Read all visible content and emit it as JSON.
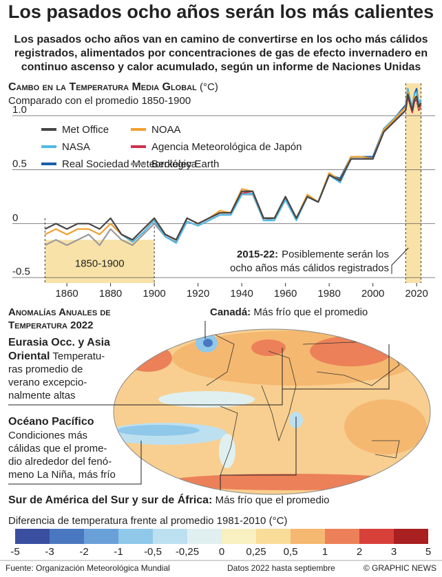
{
  "header": {
    "title": "Los pasados ocho años serán los más calientes",
    "subtitle": [
      "Los pasados ocho años van en camino de convertirse en los ocho más cálidos",
      "registrados, alimentados por concentraciones de gas de efecto invernadero en",
      "continuo ascenso y calor acumulado, según un informe de Naciones Unidas"
    ]
  },
  "chart_data": {
    "type": "line",
    "title": "Cambo en la Temperatura Media Global",
    "unit": "(°C)",
    "subtitle": "Comparado con el promedio 1850-1900",
    "x": [
      1850,
      1855,
      1860,
      1865,
      1870,
      1875,
      1880,
      1885,
      1890,
      1895,
      1900,
      1905,
      1910,
      1915,
      1920,
      1925,
      1930,
      1935,
      1940,
      1945,
      1950,
      1955,
      1960,
      1965,
      1970,
      1975,
      1980,
      1985,
      1990,
      1995,
      2000,
      2005,
      2010,
      2015,
      2016,
      2017,
      2018,
      2019,
      2020,
      2021,
      2022
    ],
    "series": [
      {
        "name": "Met Office",
        "color": "#454545",
        "values": [
          -0.05,
          0.0,
          -0.05,
          0.0,
          0.0,
          -0.05,
          0.05,
          -0.1,
          -0.15,
          -0.05,
          0.05,
          -0.1,
          -0.15,
          0.05,
          0.0,
          0.05,
          0.1,
          0.1,
          0.3,
          0.3,
          0.05,
          0.05,
          0.25,
          0.05,
          0.25,
          0.2,
          0.45,
          0.4,
          0.6,
          0.6,
          0.6,
          0.85,
          0.95,
          1.05,
          1.2,
          1.12,
          1.05,
          1.15,
          1.18,
          1.08,
          1.12
        ]
      },
      {
        "name": "NOAA",
        "color": "#f0a030",
        "values": [
          -0.1,
          -0.05,
          -0.1,
          -0.05,
          -0.05,
          -0.1,
          0.0,
          -0.1,
          -0.15,
          -0.05,
          0.05,
          -0.1,
          -0.15,
          0.05,
          0.0,
          0.05,
          0.12,
          0.1,
          0.32,
          0.3,
          0.05,
          0.05,
          0.25,
          0.05,
          0.27,
          0.2,
          0.47,
          0.4,
          0.62,
          0.62,
          0.6,
          0.87,
          0.97,
          1.08,
          1.22,
          1.12,
          1.05,
          1.17,
          1.18,
          1.07,
          1.12
        ]
      },
      {
        "name": "NASA",
        "color": "#50b8e8",
        "values": [
          null,
          null,
          null,
          null,
          null,
          null,
          0.0,
          -0.1,
          -0.17,
          -0.08,
          0.03,
          -0.12,
          -0.18,
          0.02,
          -0.02,
          0.03,
          0.08,
          0.08,
          0.27,
          0.28,
          0.03,
          0.03,
          0.22,
          0.03,
          0.25,
          0.2,
          0.45,
          0.38,
          0.6,
          0.6,
          0.6,
          0.88,
          0.98,
          1.08,
          1.25,
          1.15,
          1.08,
          1.2,
          1.22,
          1.1,
          1.15
        ]
      },
      {
        "name": "Agencia Meteorológica de Japón",
        "color": "#d0304a",
        "values": [
          null,
          null,
          null,
          null,
          null,
          null,
          null,
          null,
          null,
          -0.05,
          0.05,
          -0.1,
          -0.15,
          0.05,
          0.0,
          0.05,
          0.1,
          0.1,
          0.28,
          0.3,
          0.05,
          0.05,
          0.23,
          0.05,
          0.25,
          0.2,
          0.45,
          0.4,
          0.6,
          0.6,
          0.6,
          0.85,
          0.95,
          1.05,
          1.18,
          1.1,
          1.03,
          1.13,
          1.15,
          1.05,
          1.1
        ]
      },
      {
        "name": "Real Sociedad Meteorológica",
        "color": "#1a5fa8",
        "values": [
          null,
          null,
          null,
          null,
          null,
          null,
          null,
          null,
          null,
          null,
          null,
          null,
          null,
          null,
          null,
          null,
          null,
          null,
          null,
          null,
          0.05,
          0.05,
          0.25,
          0.05,
          0.25,
          0.2,
          0.45,
          0.42,
          0.62,
          0.62,
          0.62,
          0.88,
          0.98,
          1.1,
          1.25,
          1.15,
          1.08,
          1.2,
          1.25,
          1.1,
          1.15
        ]
      },
      {
        "name": "Berkeley Earth",
        "color": "#9a9a9a",
        "values": [
          -0.2,
          -0.15,
          -0.2,
          -0.15,
          -0.1,
          -0.2,
          -0.05,
          -0.15,
          -0.2,
          -0.1,
          0.0,
          -0.12,
          -0.17,
          0.02,
          -0.02,
          0.03,
          0.08,
          0.08,
          0.27,
          0.27,
          0.03,
          0.05,
          0.23,
          0.05,
          0.25,
          0.2,
          0.45,
          0.4,
          0.6,
          0.6,
          0.6,
          0.87,
          0.97,
          1.08,
          1.22,
          1.13,
          1.05,
          1.15,
          1.18,
          1.08,
          1.12
        ]
      }
    ],
    "xlim": [
      1848,
      2025
    ],
    "xticks": [
      1860,
      1880,
      1900,
      1920,
      1940,
      1960,
      1980,
      2000,
      2020
    ],
    "ylim": [
      -0.55,
      1.3
    ],
    "yticks": [
      {
        "value": 1,
        "label": "1.0"
      },
      0.5,
      0,
      -0.5
    ],
    "grid": true,
    "highlights": [
      {
        "range": [
          1850,
          1900
        ],
        "label": "1850-1900"
      },
      {
        "range": [
          2015,
          2022
        ],
        "label": "2015-22:",
        "text": [
          "Posiblemente serán los",
          "ocho años más cálidos registrados"
        ]
      }
    ]
  },
  "map": {
    "title": [
      "Anomalías Anuales de",
      "Temperatura 2022"
    ],
    "canada": {
      "title": "Canadá:",
      "text": "Más frío que el promedio"
    },
    "eurasia": {
      "title": [
        "Eurasia Occ. y Asia",
        "Oriental"
      ],
      "text": [
        "Temperatu-",
        "ras promedio de",
        "verano excepcio-",
        "nalmente altas"
      ]
    },
    "pacific": {
      "title": "Océano Pacífico",
      "text": [
        "Condiciones más",
        "cálidas que el prome-",
        "dio alrededor del fenó-",
        "meno La Niña, más frío"
      ]
    },
    "south": {
      "title": "Sur de América del Sur y sur de África:",
      "text": "Más frío que el promedio"
    }
  },
  "colorscale": {
    "title": "Diferencia de temperatura frente al promedio 1981-2010",
    "unit": "(°C)",
    "ticks": [
      -5,
      -3,
      -2,
      -1,
      {
        "value": -0.5,
        "label": "-0,5"
      },
      {
        "value": -0.25,
        "label": "-0,25"
      },
      0,
      {
        "value": 0.25,
        "label": "0,25"
      },
      {
        "value": 0.5,
        "label": "0,5"
      },
      1,
      2,
      3,
      5
    ],
    "colors": [
      "#3a4fa0",
      "#4a78c0",
      "#6aa0d8",
      "#90c8ea",
      "#bde0f0",
      "#e0f0f0",
      "#f8f0c0",
      "#f8dc98",
      "#f5b870",
      "#ec8058",
      "#d8403a",
      "#a82020"
    ]
  },
  "footer": {
    "source": "Fuente: Organización Meteorológica Mundial",
    "date": "Datos 2022 hasta septiembre",
    "credit": "© GRAPHIC NEWS"
  }
}
